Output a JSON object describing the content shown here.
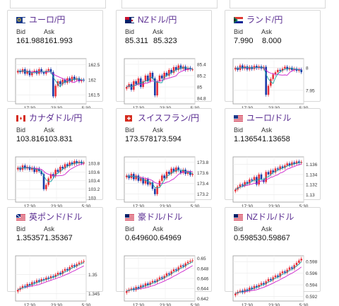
{
  "panels": [
    {
      "title": "ユーロ/円",
      "flag": "eu-flag-icon",
      "bid_label": "Bid",
      "ask_label": "Ask",
      "bid": "161.988",
      "ask": "161.993",
      "chart_data": {
        "type": "candlestick",
        "x_ticks": [
          "17:30",
          "23:30",
          "5:30"
        ],
        "y_ticks": [
          "162.5",
          "162",
          "161.5"
        ],
        "ylim": [
          161.2,
          162.7
        ],
        "close": [
          162.3,
          162.25,
          162.35,
          162.2,
          162.3,
          162.15,
          162.25,
          162.3,
          162.2,
          162.35,
          162.25,
          162.2,
          162.3,
          162.35,
          162.25,
          161.45,
          161.8,
          161.95,
          161.85,
          162.0,
          161.9,
          162.05,
          161.95,
          162.1,
          162.0,
          162.05,
          161.95,
          162.0,
          161.98
        ]
      }
    },
    {
      "title": "NZドル/円",
      "flag": "nz-flag-icon",
      "bid_label": "Bid",
      "ask_label": "Ask",
      "bid": "85.311",
      "ask": "85.323",
      "chart_data": {
        "type": "candlestick",
        "x_ticks": [
          "17:30",
          "23:30",
          "5:30"
        ],
        "y_ticks": [
          "85.4",
          "85.2",
          "85",
          "84.8"
        ],
        "ylim": [
          84.7,
          85.5
        ],
        "close": [
          85.0,
          85.05,
          84.95,
          85.1,
          85.05,
          85.15,
          85.0,
          85.1,
          85.2,
          85.1,
          85.25,
          85.15,
          84.85,
          85.1,
          85.2,
          85.15,
          85.25,
          85.2,
          85.3,
          85.25,
          85.35,
          85.3,
          85.38,
          85.32,
          85.36,
          85.3,
          85.34,
          85.31,
          85.31
        ]
      }
    },
    {
      "title": "ランド/円",
      "flag": "za-flag-icon",
      "bid_label": "Bid",
      "ask_label": "Ask",
      "bid": "7.990",
      "ask": "8.000",
      "chart_data": {
        "type": "candlestick",
        "x_ticks": [
          "17:30",
          "23:30",
          "5:30"
        ],
        "y_ticks": [
          "8",
          "7.95"
        ],
        "ylim": [
          7.92,
          8.02
        ],
        "close": [
          8.0,
          7.995,
          8.005,
          7.998,
          8.003,
          7.996,
          8.002,
          7.997,
          8.004,
          7.999,
          8.003,
          7.998,
          8.002,
          7.94,
          7.96,
          7.975,
          7.985,
          7.99,
          7.995,
          7.993,
          7.998,
          8.002,
          7.996,
          8.0,
          7.995,
          7.998,
          7.993,
          7.996,
          7.99
        ]
      }
    },
    {
      "title": "カナダドル/円",
      "flag": "ca-flag-icon",
      "bid_label": "Bid",
      "ask_label": "Ask",
      "bid": "103.816",
      "ask": "103.831",
      "chart_data": {
        "type": "candlestick",
        "x_ticks": [
          "17:30",
          "23:30",
          "5:30"
        ],
        "y_ticks": [
          "103.8",
          "103.6",
          "103.4",
          "103.2",
          "103"
        ],
        "ylim": [
          102.9,
          103.95
        ],
        "close": [
          103.7,
          103.65,
          103.75,
          103.68,
          103.72,
          103.65,
          103.7,
          103.6,
          103.68,
          103.62,
          103.55,
          103.2,
          103.3,
          103.45,
          103.55,
          103.5,
          103.65,
          103.6,
          103.72,
          103.68,
          103.78,
          103.74,
          103.82,
          103.78,
          103.85,
          103.8,
          103.84,
          103.8,
          103.82
        ]
      }
    },
    {
      "title": "スイスフラン/円",
      "flag": "ch-flag-icon",
      "bid_label": "Bid",
      "ask_label": "Ask",
      "bid": "173.578",
      "ask": "173.594",
      "chart_data": {
        "type": "candlestick",
        "x_ticks": [
          "17:30",
          "23:30",
          "5:30"
        ],
        "y_ticks": [
          "173.8",
          "173.6",
          "173.4",
          "173.2"
        ],
        "ylim": [
          173.05,
          173.9
        ],
        "close": [
          173.55,
          173.5,
          173.58,
          173.48,
          173.55,
          173.45,
          173.5,
          173.4,
          173.48,
          173.38,
          173.42,
          173.3,
          173.2,
          173.35,
          173.45,
          173.55,
          173.5,
          173.62,
          173.58,
          173.68,
          173.62,
          173.7,
          173.65,
          173.6,
          173.66,
          173.58,
          173.62,
          173.56,
          173.58
        ]
      }
    },
    {
      "title": "ユーロ/ドル",
      "flag": "eu-us-flag-icon",
      "bid_label": "Bid",
      "ask_label": "Ask",
      "bid": "1.13654",
      "ask": "1.13658",
      "chart_data": {
        "type": "candlestick",
        "x_ticks": [
          "17:30",
          "23:30",
          "5:30"
        ],
        "y_ticks": [
          "1.136",
          "1.134",
          "1.132",
          "1.13"
        ],
        "ylim": [
          1.1285,
          1.1375
        ],
        "close": [
          1.131,
          1.1315,
          1.132,
          1.1318,
          1.1325,
          1.1322,
          1.133,
          1.1328,
          1.1335,
          1.132,
          1.134,
          1.133,
          1.1325,
          1.1345,
          1.134,
          1.1348,
          1.1344,
          1.1352,
          1.135,
          1.1356,
          1.1353,
          1.1358,
          1.1362,
          1.1358,
          1.1364,
          1.1361,
          1.1366,
          1.1363,
          1.1365
        ]
      }
    },
    {
      "title": "英ポンド/ドル",
      "flag": "gb-us-flag-icon",
      "bid_label": "Bid",
      "ask_label": "Ask",
      "bid": "1.35357",
      "ask": "1.35367",
      "chart_data": {
        "type": "candlestick",
        "x_ticks": [
          "17:30",
          "23:30",
          "5:30"
        ],
        "y_ticks": [
          "1.35",
          "1.345"
        ],
        "ylim": [
          1.343,
          1.355
        ],
        "close": [
          1.346,
          1.3465,
          1.347,
          1.3468,
          1.3475,
          1.3472,
          1.348,
          1.3478,
          1.3485,
          1.3482,
          1.3488,
          1.3486,
          1.3492,
          1.349,
          1.3496,
          1.3494,
          1.35,
          1.3505,
          1.3502,
          1.351,
          1.3515,
          1.3512,
          1.352,
          1.3525,
          1.3522,
          1.3528,
          1.3532,
          1.3534,
          1.3536
        ]
      }
    },
    {
      "title": "豪ドル/ドル",
      "flag": "au-us-flag-icon",
      "bid_label": "Bid",
      "ask_label": "Ask",
      "bid": "0.64960",
      "ask": "0.64969",
      "chart_data": {
        "type": "candlestick",
        "x_ticks": [
          "17:30",
          "23:30",
          "5:30"
        ],
        "y_ticks": [
          "0.65",
          "0.648",
          "0.646",
          "0.644",
          "0.642"
        ],
        "ylim": [
          0.6415,
          0.6505
        ],
        "close": [
          0.6435,
          0.6438,
          0.644,
          0.6437,
          0.6443,
          0.6441,
          0.6446,
          0.6444,
          0.645,
          0.6447,
          0.6452,
          0.6455,
          0.6453,
          0.6458,
          0.6462,
          0.646,
          0.6465,
          0.647,
          0.6468,
          0.6474,
          0.6478,
          0.6476,
          0.6482,
          0.6486,
          0.6484,
          0.649,
          0.6493,
          0.6495,
          0.6496
        ]
      }
    },
    {
      "title": "NZドル/ドル",
      "flag": "nz-us-flag-icon",
      "bid_label": "Bid",
      "ask_label": "Ask",
      "bid": "0.59853",
      "ask": "0.59867",
      "chart_data": {
        "type": "candlestick",
        "x_ticks": [
          "17:30",
          "23:30",
          "5:30"
        ],
        "y_ticks": [
          "0.598",
          "0.596",
          "0.594",
          "0.592"
        ],
        "ylim": [
          0.5912,
          0.599
        ],
        "close": [
          0.5925,
          0.5928,
          0.593,
          0.5927,
          0.5932,
          0.593,
          0.5935,
          0.5933,
          0.5938,
          0.5936,
          0.594,
          0.5943,
          0.5941,
          0.5946,
          0.595,
          0.5948,
          0.5953,
          0.5956,
          0.5954,
          0.596,
          0.5963,
          0.5961,
          0.5966,
          0.597,
          0.5968,
          0.5974,
          0.5978,
          0.5982,
          0.5985
        ]
      }
    }
  ],
  "colors": {
    "up": "#e8303a",
    "down": "#1a3aa8",
    "ma_short": "#1aa6a6",
    "ma_long": "#cc22cc",
    "title": "#5a2d91"
  }
}
